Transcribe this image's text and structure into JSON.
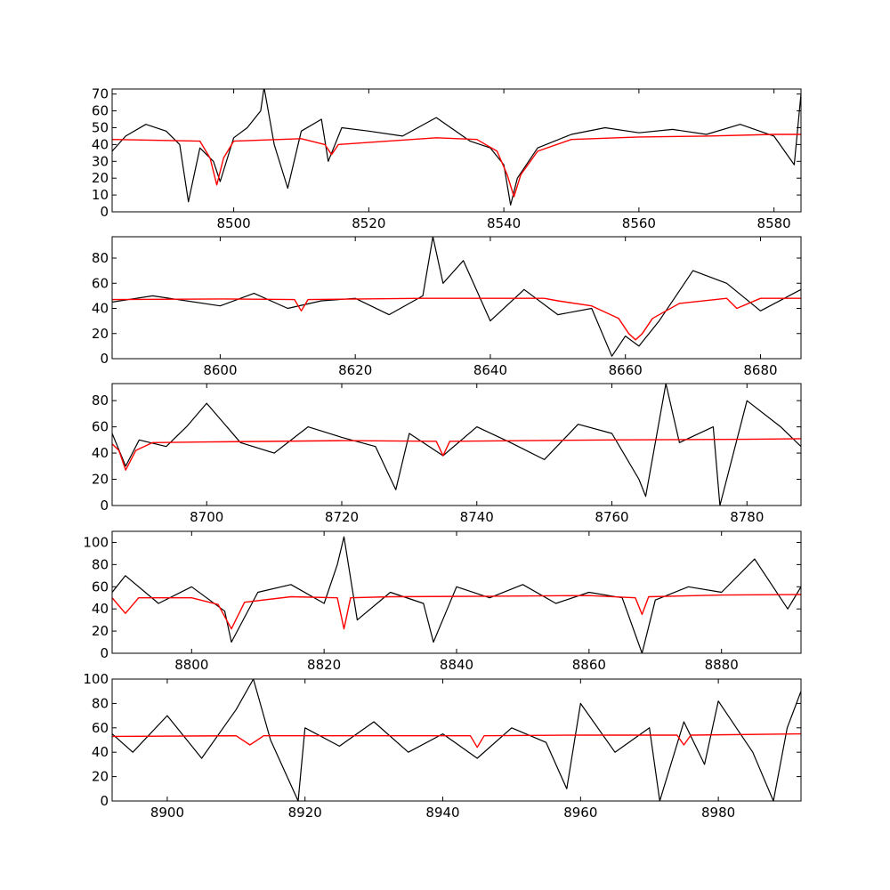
{
  "figure": {
    "title": "",
    "observed_color": "#000000",
    "model_color": "#ff0000"
  },
  "chart_data": [
    {
      "type": "line",
      "title": "",
      "xlabel": "",
      "ylabel": "",
      "xlim": [
        8482,
        8584
      ],
      "ylim": [
        0,
        73
      ],
      "xticks": [
        8500,
        8520,
        8540,
        8560,
        8580
      ],
      "yticks": [
        0,
        10,
        20,
        30,
        40,
        50,
        60,
        70
      ],
      "grid": false,
      "series": [
        {
          "role": "observed",
          "color": "#000000",
          "x": [
            8482,
            8484,
            8487,
            8490,
            8492,
            8493.3,
            8495,
            8497,
            8498,
            8500,
            8502,
            8504,
            8504.5,
            8506,
            8508,
            8510,
            8513,
            8514,
            8516,
            8520,
            8525,
            8530,
            8535,
            8538,
            8540,
            8541,
            8542,
            8545,
            8550,
            8555,
            8560,
            8565,
            8570,
            8575,
            8580,
            8583,
            8584
          ],
          "y": [
            36,
            45,
            52,
            48,
            40,
            6,
            38,
            30,
            18,
            44,
            50,
            60,
            74,
            40,
            14,
            48,
            55,
            30,
            50,
            48,
            45,
            56,
            42,
            38,
            28,
            4,
            20,
            38,
            46,
            50,
            47,
            49,
            46,
            52,
            45,
            28,
            70
          ]
        },
        {
          "role": "model",
          "color": "#ff0000",
          "x": [
            8482,
            8495,
            8496.5,
            8497.5,
            8498.5,
            8500,
            8510,
            8513.5,
            8514.5,
            8515.5,
            8530,
            8536,
            8539,
            8540.5,
            8541.5,
            8542.5,
            8545,
            8550,
            8560,
            8570,
            8580,
            8584
          ],
          "y": [
            43,
            42,
            32,
            16,
            32,
            42,
            43.5,
            40,
            34,
            40,
            44,
            43,
            36,
            22,
            9,
            22,
            36,
            43,
            44.5,
            45,
            46,
            46
          ]
        }
      ]
    },
    {
      "type": "line",
      "title": "",
      "xlabel": "",
      "ylabel": "",
      "xlim": [
        8584,
        8686
      ],
      "ylim": [
        0,
        97
      ],
      "xticks": [
        8600,
        8620,
        8640,
        8660,
        8680
      ],
      "yticks": [
        0,
        20,
        40,
        60,
        80
      ],
      "grid": false,
      "series": [
        {
          "role": "observed",
          "color": "#000000",
          "x": [
            8584,
            8590,
            8600,
            8605,
            8610,
            8615,
            8620,
            8625,
            8630,
            8631.5,
            8633,
            8636,
            8640,
            8645,
            8650,
            8655,
            8658,
            8660,
            8662,
            8665,
            8670,
            8675,
            8680,
            8686
          ],
          "y": [
            45,
            50,
            42,
            52,
            40,
            46,
            48,
            35,
            50,
            97,
            60,
            78,
            30,
            55,
            35,
            40,
            2,
            18,
            10,
            30,
            70,
            60,
            38,
            55
          ]
        },
        {
          "role": "model",
          "color": "#ff0000",
          "x": [
            8584,
            8600,
            8611,
            8612,
            8613,
            8630,
            8648,
            8650,
            8655,
            8659,
            8660.5,
            8661.5,
            8662.5,
            8664,
            8668,
            8675,
            8676.5,
            8680,
            8686
          ],
          "y": [
            47,
            47.5,
            47,
            38,
            47,
            48,
            48,
            46,
            42,
            32,
            20,
            15,
            20,
            32,
            44,
            48,
            40,
            48,
            48
          ]
        }
      ]
    },
    {
      "type": "line",
      "title": "",
      "xlabel": "",
      "ylabel": "",
      "xlim": [
        8686,
        8788
      ],
      "ylim": [
        0,
        93
      ],
      "xticks": [
        8700,
        8720,
        8740,
        8760,
        8780
      ],
      "yticks": [
        0,
        20,
        40,
        60,
        80
      ],
      "grid": false,
      "series": [
        {
          "role": "observed",
          "color": "#000000",
          "x": [
            8686,
            8688,
            8690,
            8694,
            8697,
            8700,
            8705,
            8710,
            8715,
            8720,
            8725,
            8728,
            8730,
            8735,
            8740,
            8745,
            8750,
            8755,
            8760,
            8764,
            8765,
            8768,
            8770,
            8775,
            8776,
            8780,
            8785,
            8788
          ],
          "y": [
            55,
            30,
            50,
            45,
            60,
            78,
            48,
            40,
            60,
            52,
            45,
            12,
            55,
            38,
            60,
            48,
            35,
            62,
            55,
            20,
            7,
            93,
            48,
            60,
            0,
            80,
            60,
            45
          ]
        },
        {
          "role": "model",
          "color": "#ff0000",
          "x": [
            8686,
            8687,
            8688,
            8689.5,
            8692,
            8700,
            8720,
            8734,
            8735,
            8736,
            8760,
            8780,
            8788
          ],
          "y": [
            47,
            42,
            27,
            42,
            48,
            48.5,
            49.5,
            49,
            38,
            49,
            50,
            50.5,
            51
          ]
        }
      ]
    },
    {
      "type": "line",
      "title": "",
      "xlabel": "",
      "ylabel": "",
      "xlim": [
        8788,
        8892
      ],
      "ylim": [
        0,
        110
      ],
      "xticks": [
        8800,
        8820,
        8840,
        8860,
        8880
      ],
      "yticks": [
        0,
        20,
        40,
        60,
        80,
        100
      ],
      "grid": false,
      "series": [
        {
          "role": "observed",
          "color": "#000000",
          "x": [
            8788,
            8790,
            8795,
            8800,
            8805,
            8806,
            8810,
            8815,
            8820,
            8822,
            8823,
            8825,
            8830,
            8835,
            8836.5,
            8840,
            8845,
            8850,
            8855,
            8860,
            8865,
            8868,
            8870,
            8875,
            8880,
            8885,
            8890,
            8892
          ],
          "y": [
            55,
            70,
            45,
            60,
            38,
            10,
            55,
            62,
            45,
            80,
            105,
            30,
            55,
            45,
            10,
            60,
            50,
            62,
            45,
            55,
            50,
            0,
            48,
            60,
            55,
            85,
            40,
            60
          ]
        },
        {
          "role": "model",
          "color": "#ff0000",
          "x": [
            8788,
            8790,
            8792,
            8800,
            8804,
            8806,
            8808,
            8815,
            8822,
            8823,
            8824,
            8830,
            8845,
            8860,
            8867,
            8868,
            8869,
            8880,
            8892
          ],
          "y": [
            50,
            36,
            50,
            50,
            44,
            22,
            46,
            51,
            50,
            22,
            50,
            51,
            51.5,
            52,
            50,
            35,
            51,
            52.5,
            53
          ]
        }
      ]
    },
    {
      "type": "line",
      "title": "",
      "xlabel": "",
      "ylabel": "",
      "xlim": [
        8892,
        8992
      ],
      "ylim": [
        0,
        100
      ],
      "xticks": [
        8900,
        8920,
        8940,
        8960,
        8980
      ],
      "yticks": [
        0,
        20,
        40,
        60,
        80,
        100
      ],
      "grid": false,
      "series": [
        {
          "role": "observed",
          "color": "#000000",
          "x": [
            8892,
            8895,
            8900,
            8905,
            8910,
            8912.5,
            8915,
            8919,
            8920,
            8925,
            8930,
            8935,
            8940,
            8945,
            8950,
            8955,
            8958,
            8960,
            8965,
            8970,
            8971.5,
            8975,
            8978,
            8980,
            8985,
            8988,
            8990,
            8992
          ],
          "y": [
            55,
            40,
            70,
            35,
            75,
            100,
            50,
            0,
            60,
            45,
            65,
            40,
            55,
            35,
            60,
            48,
            10,
            80,
            40,
            60,
            0,
            65,
            30,
            82,
            40,
            0,
            60,
            90
          ]
        },
        {
          "role": "model",
          "color": "#ff0000",
          "x": [
            8892,
            8910,
            8912,
            8914,
            8920,
            8944,
            8945,
            8946,
            8960,
            8974,
            8975,
            8976,
            8992
          ],
          "y": [
            53,
            53.5,
            46,
            53.5,
            53.5,
            53.5,
            44,
            53.5,
            54,
            54,
            46,
            54,
            55
          ]
        }
      ]
    }
  ]
}
